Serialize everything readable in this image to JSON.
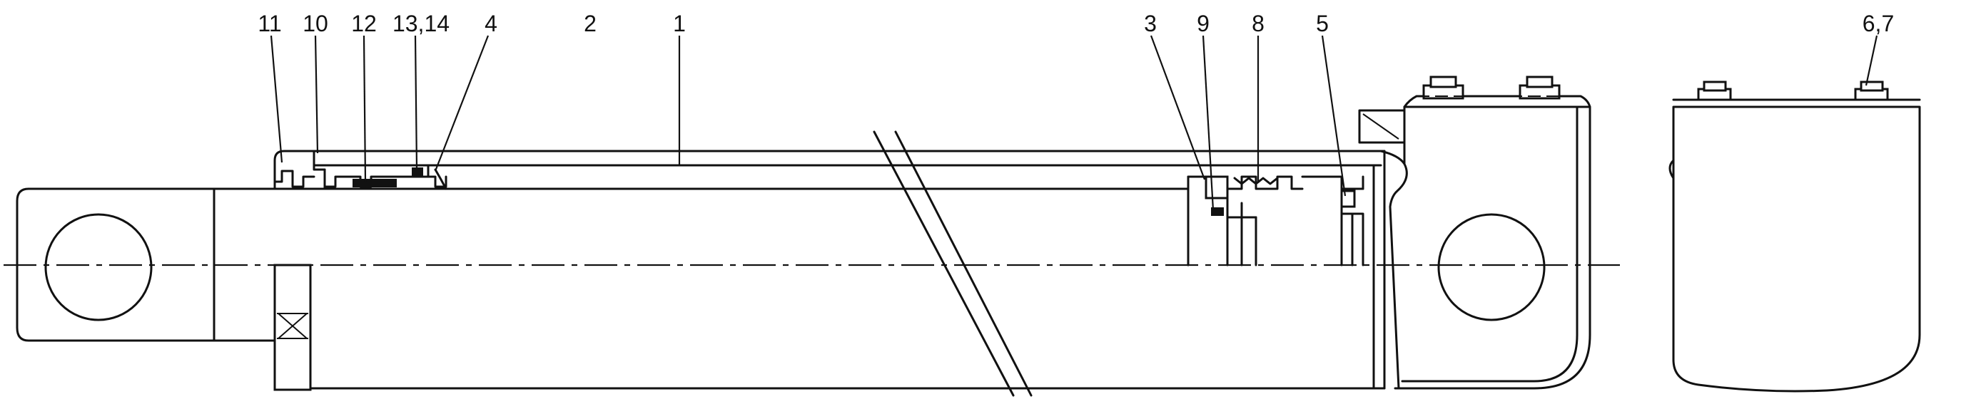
{
  "labels": {
    "p11": "11",
    "p10": "10",
    "p12": "12",
    "p13_14": "13,14",
    "p4": "4",
    "p2": "2",
    "p1": "1",
    "p3": "3",
    "p9": "9",
    "p8": "8",
    "p5": "5",
    "p6_7": "6,7"
  }
}
